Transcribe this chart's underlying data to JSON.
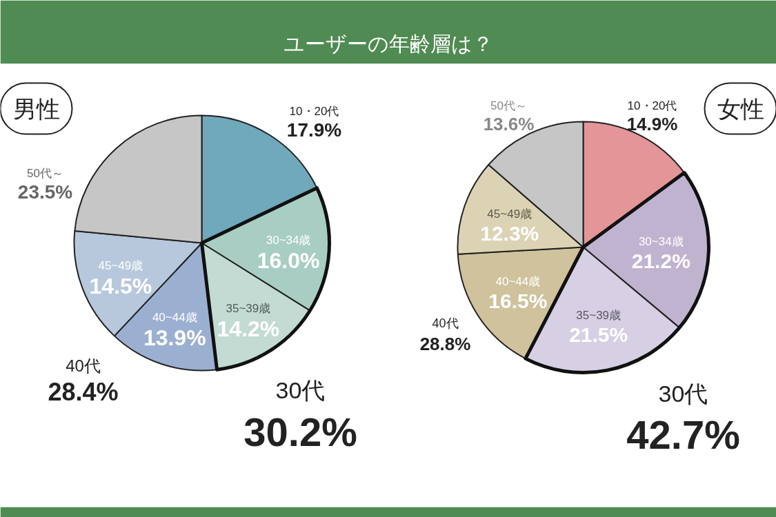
{
  "chart_data": [
    {
      "type": "pie",
      "title": "ユーザーの年齢層は？",
      "subtitle": "男性",
      "categories": [
        "10・20代",
        "30~34歳",
        "35~39歳",
        "40~44歳",
        "45~49歳",
        "50代～"
      ],
      "values": [
        17.9,
        16.0,
        14.2,
        13.9,
        14.5,
        23.5
      ],
      "value_labels": [
        "17.9%",
        "16.0%",
        "14.2%",
        "13.9%",
        "14.5%",
        "23.5%"
      ],
      "colors": [
        "#6fa9bb",
        "#a8cdc2",
        "#c3dbd2",
        "#9bb0d0",
        "#b7c8dd",
        "#c6c6c6"
      ],
      "annotations": [
        "30代",
        "30.2%",
        "40代",
        "28.4%"
      ]
    },
    {
      "type": "pie",
      "subtitle": "女性",
      "categories": [
        "10・20代",
        "30~34歳",
        "35~39歳",
        "40~44歳",
        "45~49歳",
        "50代～"
      ],
      "values": [
        14.9,
        21.2,
        21.5,
        16.5,
        12.3,
        13.6
      ],
      "value_labels": [
        "14.9%",
        "21.2%",
        "21.5%",
        "16.5%",
        "12.3%",
        "13.6%"
      ],
      "colors": [
        "#e39597",
        "#c0b3d0",
        "#d7cfe3",
        "#cfc29c",
        "#dcd3b5",
        "#c6c6c6"
      ],
      "annotations": [
        "30代",
        "42.7%",
        "40代",
        "28.8%"
      ]
    }
  ]
}
